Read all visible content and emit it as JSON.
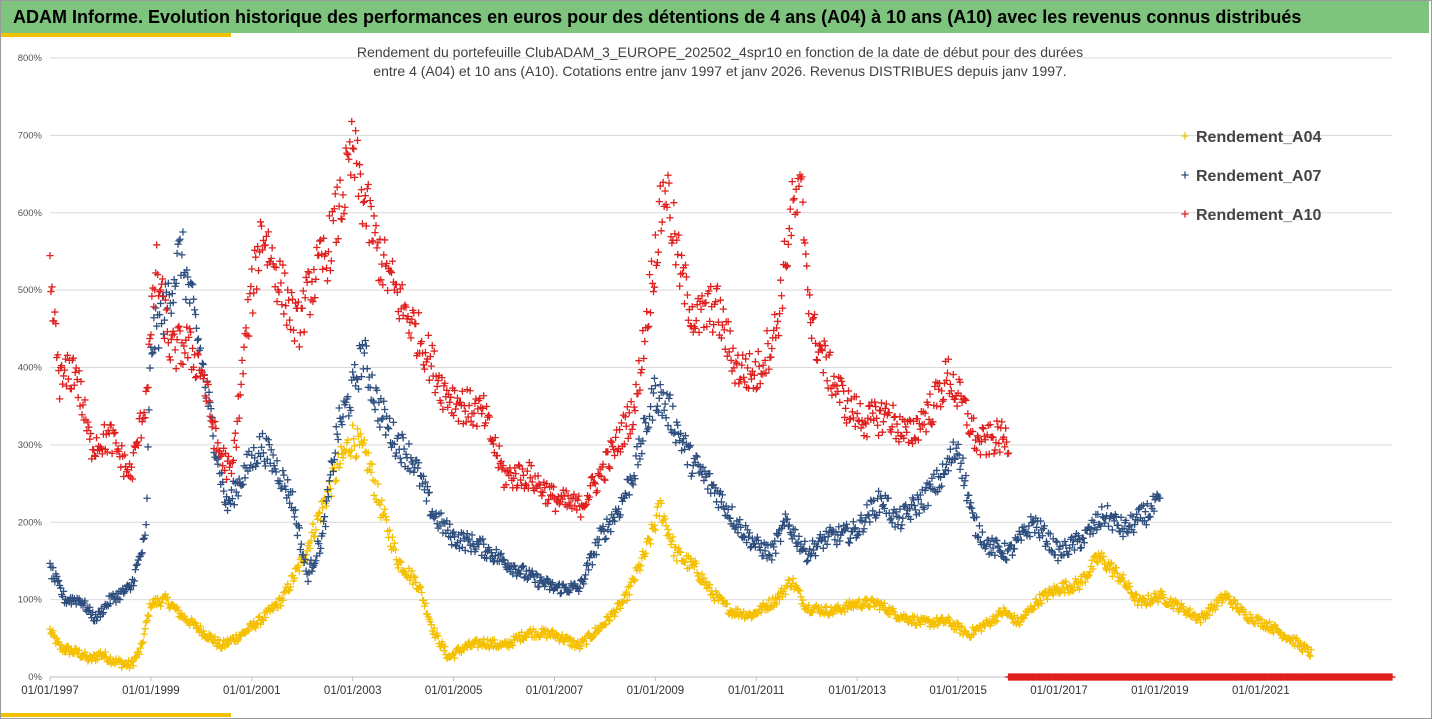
{
  "header": {
    "title": "ADAM Informe. Evolution historique des performances en euros pour des détentions de 4 ans (A04) à 10 ans (A10) avec les revenus connus distribués"
  },
  "colors": {
    "header_bg": "#7ec37e",
    "accent": "#f2c200",
    "A04": "#f5c000",
    "A07": "#2f4f7f",
    "A10": "#e0201e"
  },
  "chart_data": {
    "type": "scatter",
    "title_line1": "Rendement du portefeuille ClubADAM_3_EUROPE_202502_4spr10  en fonction de la date de début pour des durées",
    "title_line2": "entre 4 (A04) et 10 ans (A10). Cotations entre janv 1997 et janv 2026. Revenus DISTRIBUES depuis janv 1997.",
    "y_ticks": [
      "0%",
      "100%",
      "200%",
      "300%",
      "400%",
      "500%",
      "600%",
      "700%",
      "800%"
    ],
    "x_ticks": [
      "01/01/1997",
      "01/01/1999",
      "01/01/2001",
      "01/01/2003",
      "01/01/2005",
      "01/01/2007",
      "01/01/2009",
      "01/01/2011",
      "01/01/2013",
      "01/01/2015",
      "01/01/2017",
      "01/01/2019",
      "01/01/2021"
    ],
    "ylim": [
      0,
      8.0
    ],
    "xlim": [
      1997.0,
      2023.6
    ],
    "grid": true,
    "legend_position": "top-right",
    "marker": "+",
    "series": [
      {
        "name": "Rendement_A04",
        "color": "#f5c000",
        "anchors": [
          [
            1997.0,
            0.6
          ],
          [
            1997.2,
            0.38
          ],
          [
            1997.6,
            0.3
          ],
          [
            1997.8,
            0.22
          ],
          [
            1998.0,
            0.3
          ],
          [
            1998.3,
            0.2
          ],
          [
            1998.6,
            0.15
          ],
          [
            1998.8,
            0.35
          ],
          [
            1999.0,
            0.95
          ],
          [
            1999.3,
            1.0
          ],
          [
            1999.6,
            0.8
          ],
          [
            2000.0,
            0.6
          ],
          [
            2000.4,
            0.4
          ],
          [
            2000.8,
            0.55
          ],
          [
            2001.2,
            0.75
          ],
          [
            2001.6,
            1.0
          ],
          [
            2002.0,
            1.5
          ],
          [
            2002.4,
            2.2
          ],
          [
            2002.7,
            2.7
          ],
          [
            2003.0,
            3.1
          ],
          [
            2003.3,
            2.8
          ],
          [
            2003.6,
            2.1
          ],
          [
            2003.9,
            1.5
          ],
          [
            2004.3,
            1.2
          ],
          [
            2004.6,
            0.6
          ],
          [
            2004.9,
            0.25
          ],
          [
            2005.2,
            0.38
          ],
          [
            2005.6,
            0.45
          ],
          [
            2006.0,
            0.4
          ],
          [
            2006.5,
            0.58
          ],
          [
            2007.0,
            0.55
          ],
          [
            2007.5,
            0.4
          ],
          [
            2008.0,
            0.7
          ],
          [
            2008.4,
            1.0
          ],
          [
            2008.8,
            1.6
          ],
          [
            2009.1,
            2.2
          ],
          [
            2009.4,
            1.6
          ],
          [
            2009.8,
            1.4
          ],
          [
            2010.1,
            1.1
          ],
          [
            2010.5,
            0.85
          ],
          [
            2010.9,
            0.8
          ],
          [
            2011.4,
            1.0
          ],
          [
            2011.7,
            1.25
          ],
          [
            2012.0,
            0.9
          ],
          [
            2012.5,
            0.85
          ],
          [
            2013.0,
            0.95
          ],
          [
            2013.4,
            0.95
          ],
          [
            2013.8,
            0.8
          ],
          [
            2014.3,
            0.7
          ],
          [
            2014.8,
            0.72
          ],
          [
            2015.2,
            0.55
          ],
          [
            2015.6,
            0.7
          ],
          [
            2015.9,
            0.85
          ],
          [
            2016.2,
            0.7
          ],
          [
            2016.6,
            1.0
          ],
          [
            2017.0,
            1.15
          ],
          [
            2017.4,
            1.2
          ],
          [
            2017.8,
            1.55
          ],
          [
            2018.2,
            1.3
          ],
          [
            2018.6,
            0.95
          ],
          [
            2019.0,
            1.05
          ],
          [
            2019.4,
            0.9
          ],
          [
            2019.8,
            0.75
          ],
          [
            2020.3,
            1.05
          ],
          [
            2020.7,
            0.8
          ],
          [
            2021.2,
            0.65
          ],
          [
            2021.7,
            0.45
          ],
          [
            2022.0,
            0.3
          ]
        ]
      },
      {
        "name": "Rendement_A07",
        "color": "#2f4f7f",
        "anchors": [
          [
            1997.0,
            1.4
          ],
          [
            1997.3,
            1.0
          ],
          [
            1997.6,
            1.0
          ],
          [
            1997.9,
            0.75
          ],
          [
            1998.2,
            1.0
          ],
          [
            1998.6,
            1.15
          ],
          [
            1998.9,
            1.8
          ],
          [
            1999.0,
            4.3
          ],
          [
            1999.3,
            4.8
          ],
          [
            1999.6,
            5.5
          ],
          [
            1999.9,
            4.5
          ],
          [
            2000.2,
            3.3
          ],
          [
            2000.5,
            2.2
          ],
          [
            2000.9,
            2.7
          ],
          [
            2001.2,
            3.0
          ],
          [
            2001.5,
            2.7
          ],
          [
            2001.8,
            2.3
          ],
          [
            2002.1,
            1.3
          ],
          [
            2002.4,
            1.8
          ],
          [
            2002.7,
            3.2
          ],
          [
            2003.0,
            3.7
          ],
          [
            2003.2,
            4.2
          ],
          [
            2003.5,
            3.5
          ],
          [
            2003.8,
            3.1
          ],
          [
            2004.2,
            2.8
          ],
          [
            2004.6,
            2.1
          ],
          [
            2005.0,
            1.8
          ],
          [
            2005.5,
            1.7
          ],
          [
            2006.0,
            1.5
          ],
          [
            2006.5,
            1.3
          ],
          [
            2007.0,
            1.15
          ],
          [
            2007.5,
            1.15
          ],
          [
            2007.9,
            1.8
          ],
          [
            2008.3,
            2.2
          ],
          [
            2008.6,
            2.7
          ],
          [
            2009.0,
            3.7
          ],
          [
            2009.3,
            3.4
          ],
          [
            2009.7,
            2.8
          ],
          [
            2010.2,
            2.4
          ],
          [
            2010.6,
            2.0
          ],
          [
            2011.0,
            1.7
          ],
          [
            2011.3,
            1.6
          ],
          [
            2011.6,
            2.0
          ],
          [
            2012.0,
            1.6
          ],
          [
            2012.4,
            1.8
          ],
          [
            2012.8,
            1.85
          ],
          [
            2013.0,
            1.9
          ],
          [
            2013.2,
            2.1
          ],
          [
            2013.5,
            2.3
          ],
          [
            2013.8,
            2.0
          ],
          [
            2014.3,
            2.3
          ],
          [
            2014.7,
            2.6
          ],
          [
            2015.0,
            3.0
          ],
          [
            2015.3,
            2.0
          ],
          [
            2015.6,
            1.7
          ],
          [
            2016.0,
            1.6
          ],
          [
            2016.5,
            2.0
          ],
          [
            2017.0,
            1.6
          ],
          [
            2017.5,
            1.8
          ],
          [
            2017.9,
            2.1
          ],
          [
            2018.3,
            1.9
          ],
          [
            2018.8,
            2.15
          ],
          [
            2019.0,
            2.25
          ]
        ]
      },
      {
        "name": "Rendement_A10",
        "color": "#e0201e",
        "anchors": [
          [
            1997.0,
            5.1
          ],
          [
            1997.2,
            3.8
          ],
          [
            1997.5,
            4.0
          ],
          [
            1997.8,
            3.0
          ],
          [
            1998.2,
            3.1
          ],
          [
            1998.6,
            2.6
          ],
          [
            1998.9,
            3.6
          ],
          [
            1999.1,
            5.3
          ],
          [
            1999.4,
            4.2
          ],
          [
            1999.7,
            4.3
          ],
          [
            2000.0,
            4.0
          ],
          [
            2000.3,
            3.0
          ],
          [
            2000.6,
            2.6
          ],
          [
            2000.9,
            4.5
          ],
          [
            2001.2,
            5.8
          ],
          [
            2001.5,
            5.2
          ],
          [
            2001.9,
            4.5
          ],
          [
            2002.2,
            5.1
          ],
          [
            2002.5,
            5.5
          ],
          [
            2002.8,
            6.2
          ],
          [
            2003.0,
            6.8
          ],
          [
            2003.2,
            6.2
          ],
          [
            2003.5,
            5.5
          ],
          [
            2003.9,
            4.9
          ],
          [
            2004.4,
            4.3
          ],
          [
            2004.8,
            3.7
          ],
          [
            2005.2,
            3.5
          ],
          [
            2005.6,
            3.4
          ],
          [
            2006.0,
            2.6
          ],
          [
            2006.5,
            2.6
          ],
          [
            2007.0,
            2.3
          ],
          [
            2007.5,
            2.2
          ],
          [
            2007.9,
            2.6
          ],
          [
            2008.3,
            3.1
          ],
          [
            2008.6,
            3.5
          ],
          [
            2009.0,
            5.5
          ],
          [
            2009.2,
            6.4
          ],
          [
            2009.5,
            5.2
          ],
          [
            2009.8,
            4.6
          ],
          [
            2010.2,
            4.8
          ],
          [
            2010.6,
            4.0
          ],
          [
            2011.0,
            3.9
          ],
          [
            2011.4,
            4.5
          ],
          [
            2011.7,
            6.0
          ],
          [
            2011.9,
            6.2
          ],
          [
            2012.1,
            4.5
          ],
          [
            2012.4,
            4.0
          ],
          [
            2012.8,
            3.5
          ],
          [
            2013.2,
            3.3
          ],
          [
            2013.6,
            3.4
          ],
          [
            2014.0,
            3.1
          ],
          [
            2014.5,
            3.5
          ],
          [
            2014.8,
            3.9
          ],
          [
            2015.1,
            3.5
          ],
          [
            2015.4,
            3.0
          ],
          [
            2015.8,
            3.1
          ],
          [
            2016.0,
            3.05
          ]
        ]
      }
    ],
    "baseline_series": {
      "name": "Rendement_A10",
      "value": 0.0,
      "x_from": 2016.0,
      "x_to": 2023.6
    }
  }
}
